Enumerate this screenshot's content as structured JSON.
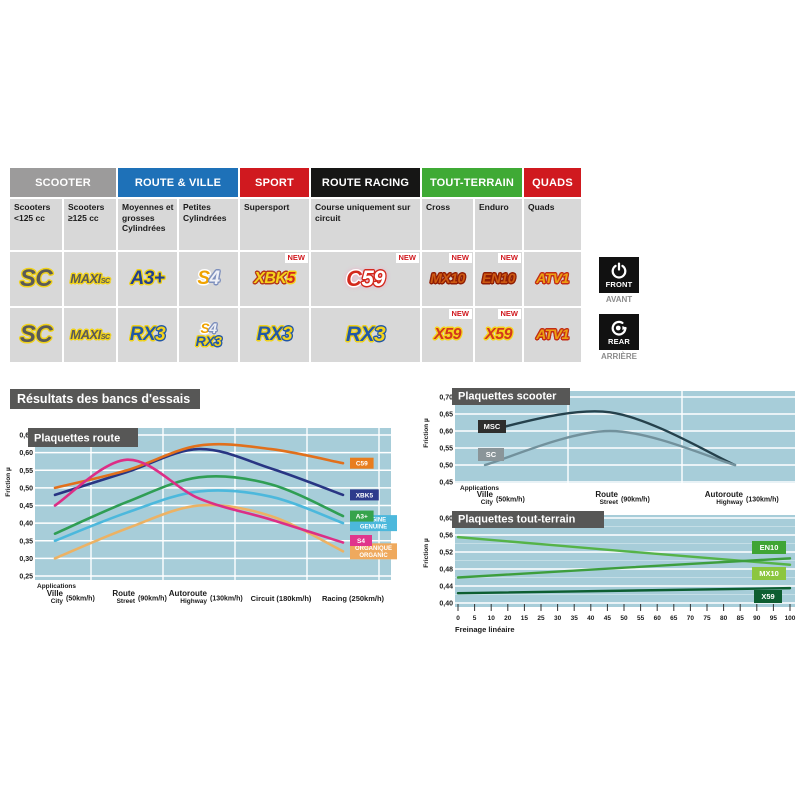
{
  "results_title": "Résultats des bancs d'essais",
  "front_badge": {
    "title": "FRONT",
    "subtitle": "AVANT"
  },
  "rear_badge": {
    "title": "REAR",
    "subtitle": "ARRIÈRE"
  },
  "table": {
    "new_label": "NEW",
    "groups": [
      {
        "label": "SCOOTER",
        "color": "#9c9b9b",
        "cols": 2
      },
      {
        "label": "ROUTE & VILLE",
        "color": "#1e71b8",
        "cols": 2
      },
      {
        "label": "SPORT",
        "color": "#d0191f",
        "cols": 1
      },
      {
        "label": "ROUTE RACING",
        "color": "#161615",
        "cols": 1
      },
      {
        "label": "TOUT-TERRAIN",
        "color": "#3faa35",
        "cols": 2
      },
      {
        "label": "QUADS",
        "color": "#d0191f",
        "cols": 1
      }
    ],
    "subheaders": [
      "Scooters\n<125 cc",
      "Scooters\n≥125 cc",
      "Moyennes et grosses Cylindrées",
      "Petites Cylindrées",
      "Supersport",
      "Course uniquement sur circuit",
      "Cross",
      "Enduro",
      "Quads"
    ],
    "rows": [
      {
        "side": "front",
        "cells": [
          {
            "new": false,
            "logos": [
              {
                "size": 24,
                "parts": [
                  {
                    "t": "SC",
                    "c": "#5a5a58",
                    "o": "#f0d21a"
                  }
                ]
              }
            ]
          },
          {
            "new": false,
            "logos": [
              {
                "size": 13,
                "parts": [
                  {
                    "t": "MAXI",
                    "c": "#5a5a58",
                    "o": "#f0d21a"
                  },
                  {
                    "t": "SC",
                    "c": "#5a5a58",
                    "o": "#f0d21a",
                    "sub": true
                  }
                ]
              }
            ]
          },
          {
            "new": false,
            "logos": [
              {
                "size": 19,
                "parts": [
                  {
                    "t": "A3+",
                    "c": "#223f8e",
                    "o": "#f0d21a"
                  }
                ]
              }
            ]
          },
          {
            "new": false,
            "logos": [
              {
                "size": 19,
                "parts": [
                  {
                    "t": "S",
                    "c": "#f0a300",
                    "o": "#ffffff"
                  },
                  {
                    "t": "4",
                    "c": "#eef0f6",
                    "o": "#7e90bd"
                  }
                ]
              }
            ]
          },
          {
            "new": true,
            "logos": [
              {
                "size": 16,
                "parts": [
                  {
                    "t": "XBK",
                    "c": "#f5d31c",
                    "o": "#b73a1a"
                  },
                  {
                    "t": "5",
                    "c": "#d3281c",
                    "o": "#f5d31c"
                  }
                ]
              }
            ]
          },
          {
            "new": true,
            "logos": [
              {
                "size": 22,
                "glow": "#ff9fc0",
                "parts": [
                  {
                    "t": "C",
                    "c": "#d3281c",
                    "o": "#ffffff"
                  },
                  {
                    "t": "59",
                    "c": "#ffffff",
                    "o": "#d3281c"
                  }
                ]
              }
            ]
          },
          {
            "new": true,
            "logos": [
              {
                "size": 14,
                "parts": [
                  {
                    "t": "MX10",
                    "c": "#cd5a12",
                    "o": "#8f1d04"
                  }
                ]
              }
            ]
          },
          {
            "new": true,
            "logos": [
              {
                "size": 14,
                "parts": [
                  {
                    "t": "EN10",
                    "c": "#cd5a12",
                    "o": "#8f1d04"
                  }
                ]
              }
            ]
          },
          {
            "new": false,
            "logos": [
              {
                "size": 14,
                "parts": [
                  {
                    "t": "ATV1",
                    "c": "#eda011",
                    "o": "#c22c16"
                  }
                ]
              }
            ]
          }
        ]
      },
      {
        "side": "rear",
        "cells": [
          {
            "new": false,
            "logos": [
              {
                "size": 24,
                "parts": [
                  {
                    "t": "SC",
                    "c": "#5a5a58",
                    "o": "#f0d21a"
                  }
                ]
              }
            ]
          },
          {
            "new": false,
            "logos": [
              {
                "size": 13,
                "parts": [
                  {
                    "t": "MAXI",
                    "c": "#5a5a58",
                    "o": "#f0d21a"
                  },
                  {
                    "t": "SC",
                    "c": "#5a5a58",
                    "o": "#f0d21a",
                    "sub": true
                  }
                ]
              }
            ]
          },
          {
            "new": false,
            "logos": [
              {
                "size": 19,
                "parts": [
                  {
                    "t": "RX",
                    "c": "#2257a6",
                    "o": "#f0d21a"
                  },
                  {
                    "t": "3",
                    "c": "#f5d31c",
                    "o": "#2257a6"
                  }
                ]
              }
            ]
          },
          {
            "new": false,
            "logos": [
              {
                "size": 14,
                "parts": [
                  {
                    "t": "S",
                    "c": "#f0a300",
                    "o": "#ffffff"
                  },
                  {
                    "t": "4",
                    "c": "#eef0f6",
                    "o": "#7e90bd"
                  }
                ]
              },
              {
                "size": 14,
                "parts": [
                  {
                    "t": "RX",
                    "c": "#2257a6",
                    "o": "#f0d21a"
                  },
                  {
                    "t": "3",
                    "c": "#f5d31c",
                    "o": "#2257a6"
                  }
                ]
              }
            ]
          },
          {
            "new": false,
            "logos": [
              {
                "size": 19,
                "parts": [
                  {
                    "t": "RX",
                    "c": "#2257a6",
                    "o": "#f0d21a"
                  },
                  {
                    "t": "3",
                    "c": "#f5d31c",
                    "o": "#2257a6"
                  }
                ]
              }
            ]
          },
          {
            "new": false,
            "logos": [
              {
                "size": 21,
                "parts": [
                  {
                    "t": "RX",
                    "c": "#2257a6",
                    "o": "#f0d21a"
                  },
                  {
                    "t": "3",
                    "c": "#f5d31c",
                    "o": "#2257a6"
                  }
                ]
              }
            ]
          },
          {
            "new": true,
            "logos": [
              {
                "size": 16,
                "parts": [
                  {
                    "t": "X59",
                    "c": "#d3381c",
                    "o": "#f5d31c"
                  }
                ]
              }
            ]
          },
          {
            "new": true,
            "logos": [
              {
                "size": 16,
                "parts": [
                  {
                    "t": "X59",
                    "c": "#d3381c",
                    "o": "#f5d31c"
                  }
                ]
              }
            ]
          },
          {
            "new": false,
            "logos": [
              {
                "size": 14,
                "parts": [
                  {
                    "t": "ATV1",
                    "c": "#eda011",
                    "o": "#c22c16"
                  }
                ]
              }
            ]
          }
        ]
      }
    ]
  },
  "chart_data": [
    {
      "id": "route",
      "type": "line",
      "title": "Plaquettes route",
      "ylabel": "Friction µ",
      "x_caption": "Applications",
      "ylim": [
        0.25,
        0.65
      ],
      "grid": true,
      "legend_position": "right-of-line-ends",
      "yticks": [
        {
          "v": 0.65,
          "label": "0,65"
        },
        {
          "v": 0.6,
          "label": "0,60"
        },
        {
          "v": 0.55,
          "label": "0,55"
        },
        {
          "v": 0.5,
          "label": "0,50"
        },
        {
          "v": 0.45,
          "label": "0,45"
        },
        {
          "v": 0.4,
          "label": "0,40"
        },
        {
          "v": 0.35,
          "label": "0,35"
        },
        {
          "v": 0.3,
          "label": "0,30"
        },
        {
          "v": 0.25,
          "label": "0,25"
        }
      ],
      "categories": [
        {
          "fr": "Ville",
          "en": "City",
          "speed": "(50km/h)"
        },
        {
          "fr": "Route",
          "en": "Street",
          "speed": "(90km/h)"
        },
        {
          "fr": "Autoroute",
          "en": "Highway",
          "speed": "(130km/h)"
        },
        {
          "fr": "Circuit",
          "en": "",
          "speed": "(180km/h)"
        },
        {
          "fr": "Racing",
          "en": "",
          "speed": "(250km/h)"
        }
      ],
      "series": [
        {
          "name": "ORGANIQUE / ORGANIC",
          "color": "#ecb264",
          "chip_bg": "#efa95d",
          "chip_lines": [
            "ORGANIQUE",
            "ORGANIC"
          ],
          "values": [
            0.3,
            0.385,
            0.45,
            0.42,
            0.32
          ]
        },
        {
          "name": "ORIGINE / GENUINE",
          "color": "#4cb8dc",
          "chip_bg": "#4cb8dc",
          "chip_lines": [
            "ORIGINE",
            "GENUINE"
          ],
          "values": [
            0.35,
            0.43,
            0.49,
            0.475,
            0.4
          ]
        },
        {
          "name": "A3+",
          "color": "#2f9e54",
          "chip_bg": "#36a34c",
          "chip_lines": [
            "A3+"
          ],
          "values": [
            0.37,
            0.46,
            0.53,
            0.51,
            0.42
          ]
        },
        {
          "name": "XBK5",
          "color": "#283583",
          "chip_bg": "#2d3a8c",
          "chip_lines": [
            "XBK5"
          ],
          "values": [
            0.48,
            0.545,
            0.61,
            0.555,
            0.48
          ]
        },
        {
          "name": "C59",
          "color": "#e1701c",
          "chip_bg": "#e87d1e",
          "chip_lines": [
            "C59"
          ],
          "values": [
            0.5,
            0.55,
            0.62,
            0.61,
            0.57
          ]
        },
        {
          "name": "S4",
          "color": "#dc2e86",
          "chip_bg": "#e0358c",
          "chip_lines": [
            "S4"
          ],
          "values": [
            0.45,
            0.58,
            0.47,
            0.41,
            0.345
          ]
        }
      ]
    },
    {
      "id": "scooter",
      "type": "line",
      "title": "Plaquettes scooter",
      "ylabel": "Friction µ",
      "x_caption": "Applications",
      "ylim": [
        0.45,
        0.7
      ],
      "grid": true,
      "legend_position": "left-at-line-starts",
      "yticks": [
        {
          "v": 0.7,
          "label": "0,70"
        },
        {
          "v": 0.65,
          "label": "0,65"
        },
        {
          "v": 0.6,
          "label": "0,60"
        },
        {
          "v": 0.55,
          "label": "0,55"
        },
        {
          "v": 0.5,
          "label": "0,50"
        },
        {
          "v": 0.45,
          "label": "0,45"
        }
      ],
      "categories": [
        {
          "fr": "Ville",
          "en": "City",
          "speed": "(50km/h)"
        },
        {
          "fr": "Route",
          "en": "Street",
          "speed": "(90km/h)"
        },
        {
          "fr": "Autoroute",
          "en": "Highway",
          "speed": "(130km/h)"
        }
      ],
      "series": [
        {
          "name": "MSC",
          "color": "#25414c",
          "chip_bg": "#2e2e2d",
          "chip_lines": [
            "MSC"
          ],
          "values": [
            0.6,
            0.655,
            0.5
          ]
        },
        {
          "name": "SC",
          "color": "#72919c",
          "chip_bg": "#8a9599",
          "chip_lines": [
            "SC"
          ],
          "values": [
            0.5,
            0.6,
            0.5
          ]
        }
      ]
    },
    {
      "id": "offroad",
      "type": "line",
      "title": "Plaquettes tout-terrain",
      "ylabel": "Friction µ",
      "xlabel": "Freinage linéaire",
      "ylim": [
        0.4,
        0.6
      ],
      "xlim": [
        0,
        100
      ],
      "grid": true,
      "legend_position": "right-inside",
      "yticks": [
        {
          "v": 0.6,
          "label": "0,60"
        },
        {
          "v": 0.56,
          "label": "0,56"
        },
        {
          "v": 0.52,
          "label": "0,52"
        },
        {
          "v": 0.48,
          "label": "0,48"
        },
        {
          "v": 0.44,
          "label": "0,44"
        },
        {
          "v": 0.4,
          "label": "0,40"
        }
      ],
      "xticks": [
        "0",
        "5",
        "10",
        "20",
        "15",
        "25",
        "30",
        "35",
        "40",
        "45",
        "50",
        "55",
        "60",
        "65",
        "70",
        "75",
        "80",
        "85",
        "90",
        "95",
        "100"
      ],
      "series": [
        {
          "name": "EN10",
          "color": "#55b348",
          "chip_bg": "#3fa535",
          "chip_lines": [
            "EN10"
          ],
          "points": [
            [
              0,
              0.555
            ],
            [
              50,
              0.522
            ],
            [
              100,
              0.49
            ]
          ]
        },
        {
          "name": "MX10",
          "color": "#3d9e3d",
          "chip_bg": "#8cc63f",
          "chip_lines": [
            "MX10"
          ],
          "points": [
            [
              0,
              0.46
            ],
            [
              50,
              0.483
            ],
            [
              100,
              0.505
            ]
          ]
        },
        {
          "name": "X59",
          "color": "#0d5e31",
          "chip_bg": "#0d5e31",
          "chip_lines": [
            "X59"
          ],
          "points": [
            [
              0,
              0.423
            ],
            [
              100,
              0.435
            ]
          ]
        }
      ]
    }
  ]
}
